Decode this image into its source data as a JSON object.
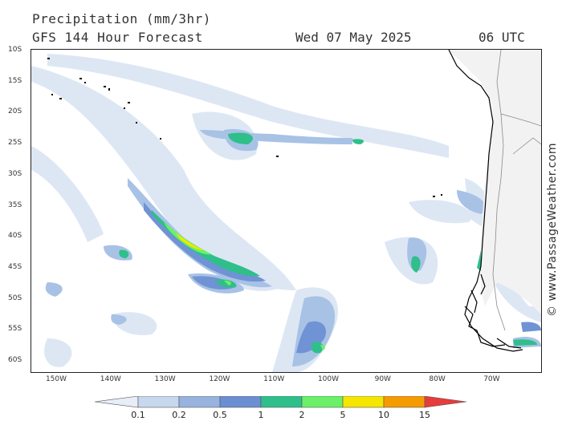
{
  "header": {
    "title_line1": "Precipitation (mm/3hr)",
    "title_line2": "GFS 144 Hour Forecast",
    "date": "Wed 07 May 2025",
    "time": "06 UTC"
  },
  "watermark": "© www.PassageWeather.com",
  "lat_labels": [
    "10S",
    "15S",
    "20S",
    "25S",
    "30S",
    "35S",
    "40S",
    "45S",
    "50S",
    "55S",
    "60S"
  ],
  "lon_labels": [
    "150W",
    "140W",
    "130W",
    "120W",
    "110W",
    "100W",
    "90W",
    "80W",
    "70W"
  ],
  "legend": {
    "labels": [
      "0.1",
      "0.2",
      "0.5",
      "1",
      "2",
      "5",
      "10",
      "15"
    ],
    "colors": [
      "#e8eef7",
      "#c6d7ee",
      "#97b3de",
      "#6a8fd2",
      "#2fbf8a",
      "#6cf06a",
      "#f5e600",
      "#f59b00",
      "#e63c3c"
    ]
  },
  "colors": {
    "land": "#f2f2f2",
    "coast": "#000000",
    "border": "#8a8a8a",
    "precip_light": "#dde7f4",
    "precip_mid": "#a8c2e6",
    "precip_strong": "#6f93d4",
    "precip_teal": "#2fbf8a",
    "precip_green": "#6cf06a",
    "precip_yellow": "#f5e600"
  }
}
